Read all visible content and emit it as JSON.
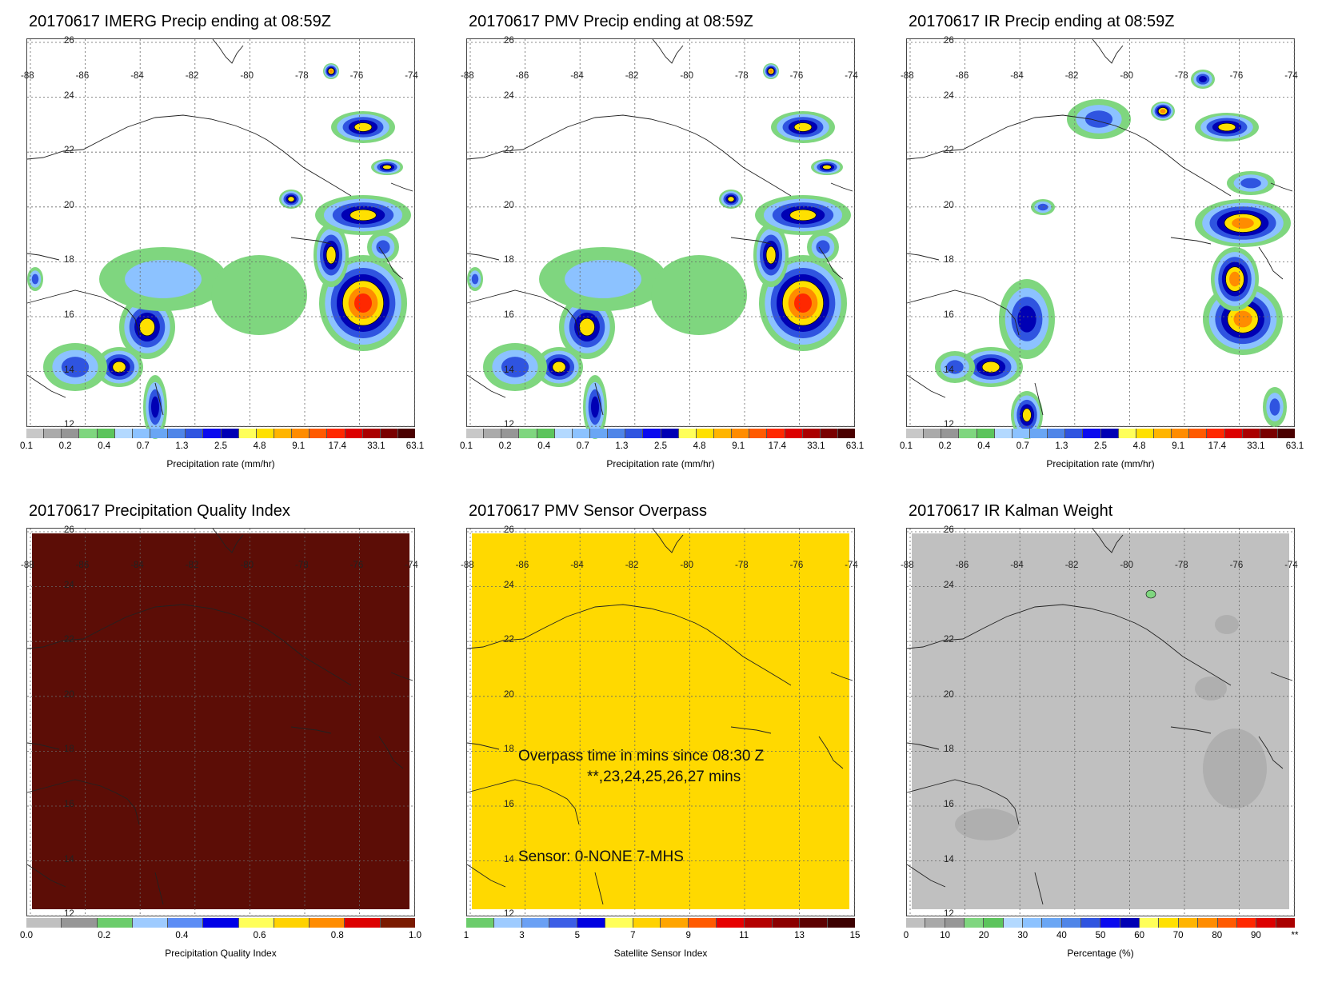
{
  "panels": [
    {
      "id": "imerg",
      "title": "20170617 IMERG Precip ending at 08:59Z",
      "colorbar_label": "Precipitation rate (mm/hr)",
      "ticks": [
        "0.1",
        "0.2",
        "0.4",
        "0.7",
        "1.3",
        "2.5",
        "4.8",
        "9.1",
        "17.4",
        "33.1",
        "63.1"
      ]
    },
    {
      "id": "pmv",
      "title": "20170617 PMV Precip ending at 08:59Z",
      "colorbar_label": "Precipitation rate (mm/hr)",
      "ticks": [
        "0.1",
        "0.2",
        "0.4",
        "0.7",
        "1.3",
        "2.5",
        "4.8",
        "9.1",
        "17.4",
        "33.1",
        "63.1"
      ]
    },
    {
      "id": "ir",
      "title": "20170617 IR Precip ending at 08:59Z",
      "colorbar_label": "Precipitation rate (mm/hr)",
      "ticks": [
        "0.1",
        "0.2",
        "0.4",
        "0.7",
        "1.3",
        "2.5",
        "4.8",
        "9.1",
        "17.4",
        "33.1",
        "63.1"
      ]
    },
    {
      "id": "pqi",
      "title": "20170617 Precipitation Quality Index",
      "colorbar_label": "Precipitation Quality Index",
      "ticks": [
        "0.0",
        "0.2",
        "0.4",
        "0.6",
        "0.8",
        "1.0"
      ],
      "fill": "#5c0d06"
    },
    {
      "id": "overpass",
      "title": "20170617 PMV Sensor Overpass",
      "colorbar_label": "Satellite Sensor Index",
      "ticks": [
        "1",
        "3",
        "5",
        "7",
        "9",
        "11",
        "13",
        "15"
      ],
      "fill": "#ffd900",
      "overlay": {
        "line1": "Overpass time in mins since 08:30 Z",
        "line2": "**,23,24,25,26,27 mins",
        "line3": "Sensor:   0-NONE  7-MHS"
      }
    },
    {
      "id": "kalman",
      "title": "20170617 IR Kalman Weight",
      "colorbar_label": "Percentage (%)",
      "ticks": [
        "0",
        "10",
        "20",
        "30",
        "40",
        "50",
        "60",
        "70",
        "80",
        "90",
        "**"
      ],
      "fill": "#c0c0c0"
    }
  ],
  "lat_labels": [
    "26",
    "24",
    "22",
    "20",
    "18",
    "16",
    "14",
    "12"
  ],
  "lon_labels": [
    "-88",
    "-86",
    "-84",
    "-82",
    "-80",
    "-78",
    "-76",
    "-74"
  ],
  "colors": {
    "precip_scale": [
      "#c8c8c8",
      "#aaaaaa",
      "#969696",
      "#7fd67f",
      "#5cc45c",
      "#b3d9ff",
      "#8cc2ff",
      "#6aa6f4",
      "#4f85e8",
      "#2f54e0",
      "#0a0aee",
      "#0000b4",
      "#ffff5a",
      "#ffe000",
      "#ffb400",
      "#ff8c00",
      "#ff5a00",
      "#ff2800",
      "#dc0000",
      "#aa0000",
      "#7a0000",
      "#4a0000"
    ],
    "pqi_scale": [
      "#c0c0c0",
      "#969696",
      "#6bcc6b",
      "#9ecbff",
      "#5b8cf5",
      "#0000e6",
      "#ffff5a",
      "#ffd200",
      "#ff8c00",
      "#dc0000",
      "#7a1a00"
    ],
    "sensor_scale": [
      "#6bcc6b",
      "#9ecbff",
      "#6aa0f4",
      "#3c5ee6",
      "#0000e0",
      "#ffff5a",
      "#ffd200",
      "#ffa500",
      "#ff5a00",
      "#e60000",
      "#b40000",
      "#8b0000",
      "#5c0000",
      "#3c0000"
    ],
    "kalman_scale": [
      "#c0c0c0",
      "#a8a8a8",
      "#969696",
      "#7fd67f",
      "#5cc45c",
      "#b3d9ff",
      "#8cc2ff",
      "#6aa6f4",
      "#4f85e8",
      "#2f54e0",
      "#0a0aee",
      "#0000b4",
      "#ffff5a",
      "#ffe000",
      "#ffb400",
      "#ff8c00",
      "#ff5a00",
      "#ff2800",
      "#dc0000",
      "#aa0000"
    ]
  }
}
